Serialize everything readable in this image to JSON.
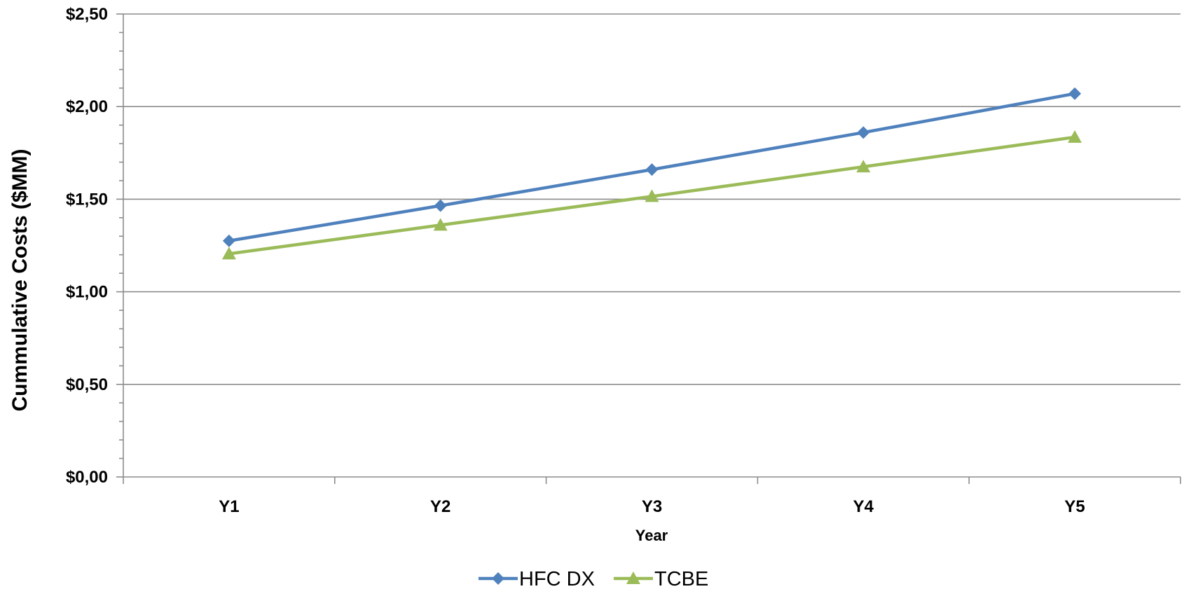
{
  "chart_data": {
    "type": "line",
    "title": "",
    "xlabel": "Year",
    "ylabel": "Cummulative Costs ($MM)",
    "categories": [
      "Y1",
      "Y2",
      "Y3",
      "Y4",
      "Y5"
    ],
    "y_ticks": [
      "$0,00",
      "$0,50",
      "$1,00",
      "$1,50",
      "$2,00",
      "$2,50"
    ],
    "ylim": [
      0,
      2.5
    ],
    "y_major_step": 0.5,
    "y_minor_step": 0.1,
    "grid": "horizontal-major",
    "legend_position": "bottom",
    "series": [
      {
        "name": "HFC DX",
        "values": [
          1.275,
          1.465,
          1.66,
          1.86,
          2.07
        ],
        "color": "#4F81BD",
        "marker": "diamond"
      },
      {
        "name": "TCBE",
        "values": [
          1.205,
          1.36,
          1.515,
          1.675,
          1.835
        ],
        "color": "#9BBB59",
        "marker": "triangle"
      }
    ]
  }
}
